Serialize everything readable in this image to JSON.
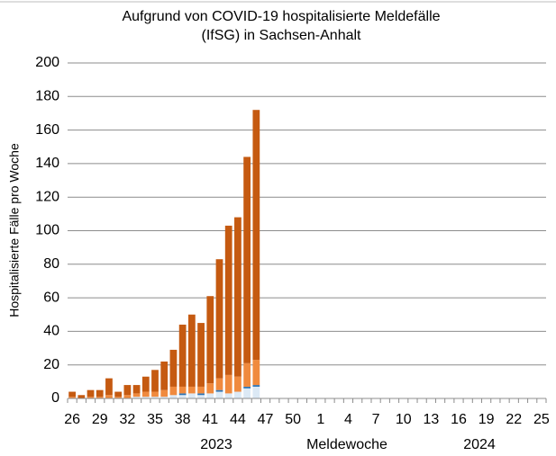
{
  "chart_data": {
    "type": "stacked_bar",
    "title": [
      "Aufgrund von COVID-19 hospitalisierte Meldefälle",
      "(IfSG) in Sachsen-Anhalt"
    ],
    "ylabel": "Hospitalisierte Fälle pro Woche",
    "xlabel": "Meldewoche",
    "year_labels": [
      "2023",
      "2024"
    ],
    "categories": [
      "26",
      null,
      null,
      "29",
      null,
      null,
      "32",
      null,
      null,
      "35",
      null,
      null,
      "38",
      null,
      null,
      "41",
      null,
      null,
      "44",
      null,
      null,
      "47",
      null,
      null,
      "50",
      null,
      null,
      "1",
      null,
      null,
      "4",
      null,
      null,
      "7",
      null,
      null,
      "10",
      null,
      null,
      "13",
      null,
      null,
      "16",
      null,
      null,
      "19",
      null,
      null,
      "22",
      null,
      null,
      "25"
    ],
    "series": [
      {
        "color": "#dce9f5",
        "values": [
          0,
          0,
          0,
          0,
          0,
          0,
          0,
          1,
          1,
          1,
          1,
          2,
          2,
          3,
          2,
          3,
          4,
          3,
          4,
          6,
          7,
          null,
          null,
          null,
          null,
          null,
          null,
          null,
          null,
          null,
          null,
          null,
          null,
          null,
          null,
          null,
          null,
          null,
          null,
          null,
          null,
          null,
          null,
          null,
          null,
          null,
          null,
          null,
          null,
          null,
          null,
          null
        ]
      },
      {
        "color": "#2e75b6",
        "values": [
          0,
          0,
          0,
          0,
          0,
          0,
          0,
          0,
          0,
          0,
          0,
          0,
          1,
          0,
          1,
          0,
          1,
          0,
          0,
          1,
          1,
          null,
          null,
          null,
          null,
          null,
          null,
          null,
          null,
          null,
          null,
          null,
          null,
          null,
          null,
          null,
          null,
          null,
          null,
          null,
          null,
          null,
          null,
          null,
          null,
          null,
          null,
          null,
          null,
          null,
          null,
          null
        ]
      },
      {
        "color": "#f08a3e",
        "values": [
          1,
          0,
          1,
          1,
          2,
          1,
          2,
          2,
          3,
          3,
          4,
          5,
          4,
          4,
          4,
          6,
          7,
          11,
          9,
          14,
          15,
          null,
          null,
          null,
          null,
          null,
          null,
          null,
          null,
          null,
          null,
          null,
          null,
          null,
          null,
          null,
          null,
          null,
          null,
          null,
          null,
          null,
          null,
          null,
          null,
          null,
          null,
          null,
          null,
          null,
          null,
          null
        ]
      },
      {
        "color": "#c55a11",
        "values": [
          3,
          2,
          4,
          4,
          10,
          3,
          6,
          5,
          9,
          13,
          17,
          22,
          37,
          43,
          38,
          52,
          71,
          89,
          95,
          123,
          149,
          null,
          null,
          null,
          null,
          null,
          null,
          null,
          null,
          null,
          null,
          null,
          null,
          null,
          null,
          null,
          null,
          null,
          null,
          null,
          null,
          null,
          null,
          null,
          null,
          null,
          null,
          null,
          null,
          null,
          null,
          null
        ]
      }
    ],
    "ylim": [
      0,
      200
    ],
    "yticks": [
      0,
      20,
      40,
      60,
      80,
      100,
      120,
      140,
      160,
      180,
      200
    ],
    "grid": true
  }
}
